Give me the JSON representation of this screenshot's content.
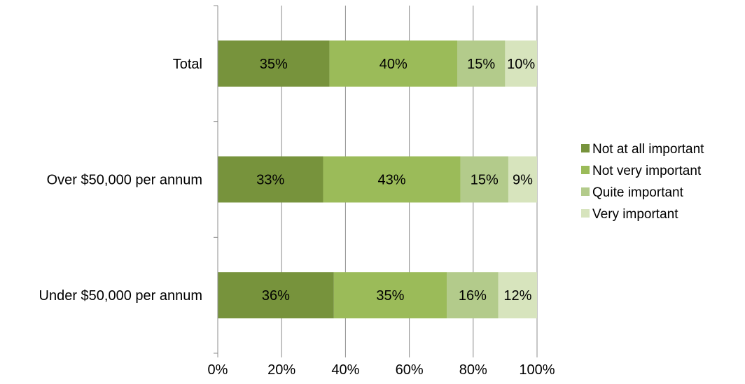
{
  "chart_data": {
    "type": "bar",
    "orientation": "horizontal",
    "stacked": true,
    "percent_stacked": true,
    "categories": [
      "Total",
      "Over $50,000 per annum",
      "Under $50,000 per annum"
    ],
    "series": [
      {
        "name": "Not at all important",
        "color": "#77933c",
        "values": [
          35,
          33,
          36
        ],
        "labels": [
          "35%",
          "33%",
          "36%"
        ]
      },
      {
        "name": "Not very important",
        "color": "#9bbb59",
        "values": [
          40,
          43,
          35
        ],
        "labels": [
          "40%",
          "43%",
          "35%"
        ]
      },
      {
        "name": "Quite important",
        "color": "#b3cb8b",
        "values": [
          15,
          15,
          16
        ],
        "labels": [
          "15%",
          "15%",
          "16%"
        ]
      },
      {
        "name": "Very important",
        "color": "#d7e4bd",
        "values": [
          10,
          9,
          12
        ],
        "labels": [
          "10%",
          "9%",
          "12%"
        ]
      }
    ],
    "x_ticks": [
      "0%",
      "20%",
      "40%",
      "60%",
      "80%",
      "100%"
    ],
    "xlim": [
      0,
      100
    ],
    "grid": true,
    "legend_position": "right",
    "title": "",
    "xlabel": "",
    "ylabel": ""
  }
}
